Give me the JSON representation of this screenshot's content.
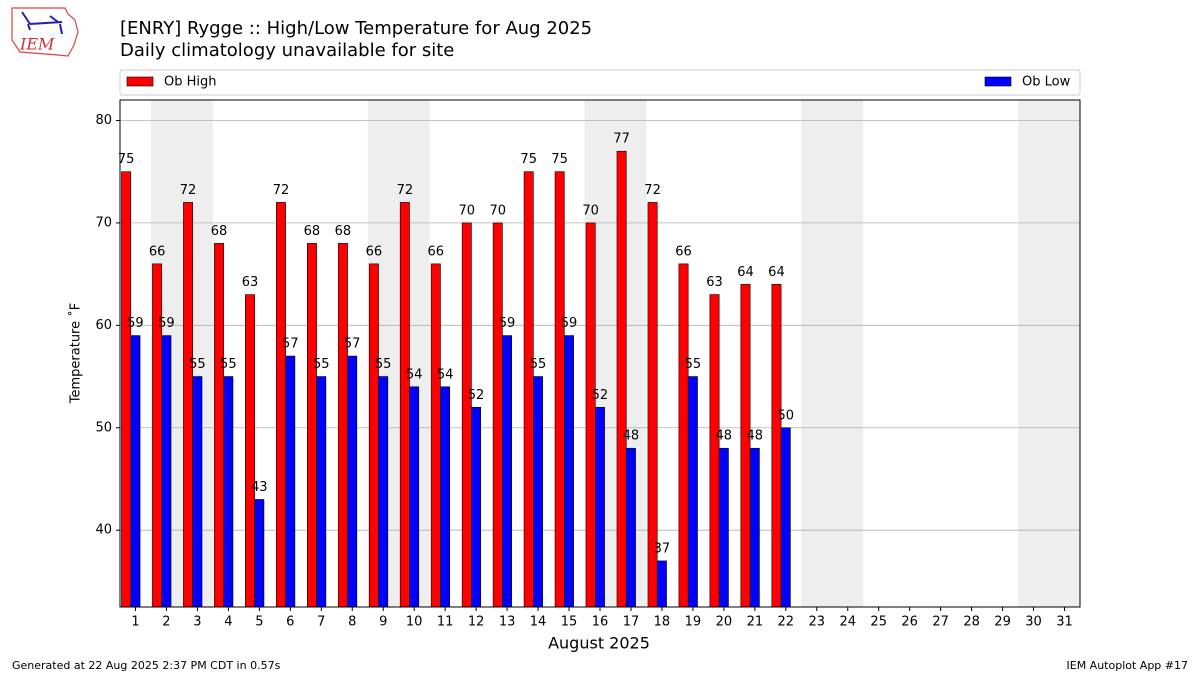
{
  "logo": {
    "text": "IEM"
  },
  "footer": {
    "left": "Generated at 22 Aug 2025 2:37 PM CDT in 0.57s",
    "right": "IEM Autoplot App #17"
  },
  "chart_data": {
    "type": "bar",
    "title": "[ENRY] Rygge :: High/Low Temperature for Aug 2025",
    "subtitle": "Daily climatology unavailable for site",
    "xlabel": "August 2025",
    "ylabel": "Temperature ˚F",
    "categories": [
      "1",
      "2",
      "3",
      "4",
      "5",
      "6",
      "7",
      "8",
      "9",
      "10",
      "11",
      "12",
      "13",
      "14",
      "15",
      "16",
      "17",
      "18",
      "19",
      "20",
      "21",
      "22",
      "23",
      "24",
      "25",
      "26",
      "27",
      "28",
      "29",
      "30",
      "31"
    ],
    "series": [
      {
        "name": "Ob High",
        "color": "#ff0000",
        "values": [
          75,
          66,
          72,
          68,
          63,
          72,
          68,
          68,
          66,
          72,
          66,
          70,
          70,
          75,
          75,
          70,
          77,
          72,
          66,
          63,
          64,
          64,
          null,
          null,
          null,
          null,
          null,
          null,
          null,
          null,
          null
        ]
      },
      {
        "name": "Ob Low",
        "color": "#0000ff",
        "values": [
          59,
          59,
          55,
          55,
          43,
          57,
          55,
          57,
          55,
          54,
          54,
          52,
          59,
          55,
          59,
          52,
          48,
          37,
          55,
          48,
          48,
          50,
          null,
          null,
          null,
          null,
          null,
          null,
          null,
          null,
          null
        ]
      }
    ],
    "shaded_ranges": [
      [
        2,
        3
      ],
      [
        9,
        10
      ],
      [
        16,
        17
      ],
      [
        23,
        24
      ],
      [
        30,
        31
      ]
    ],
    "shade_color": "#eeeeee",
    "ylim": [
      32.5,
      82
    ],
    "yticks": [
      40,
      50,
      60,
      70,
      80
    ],
    "grid": true
  }
}
